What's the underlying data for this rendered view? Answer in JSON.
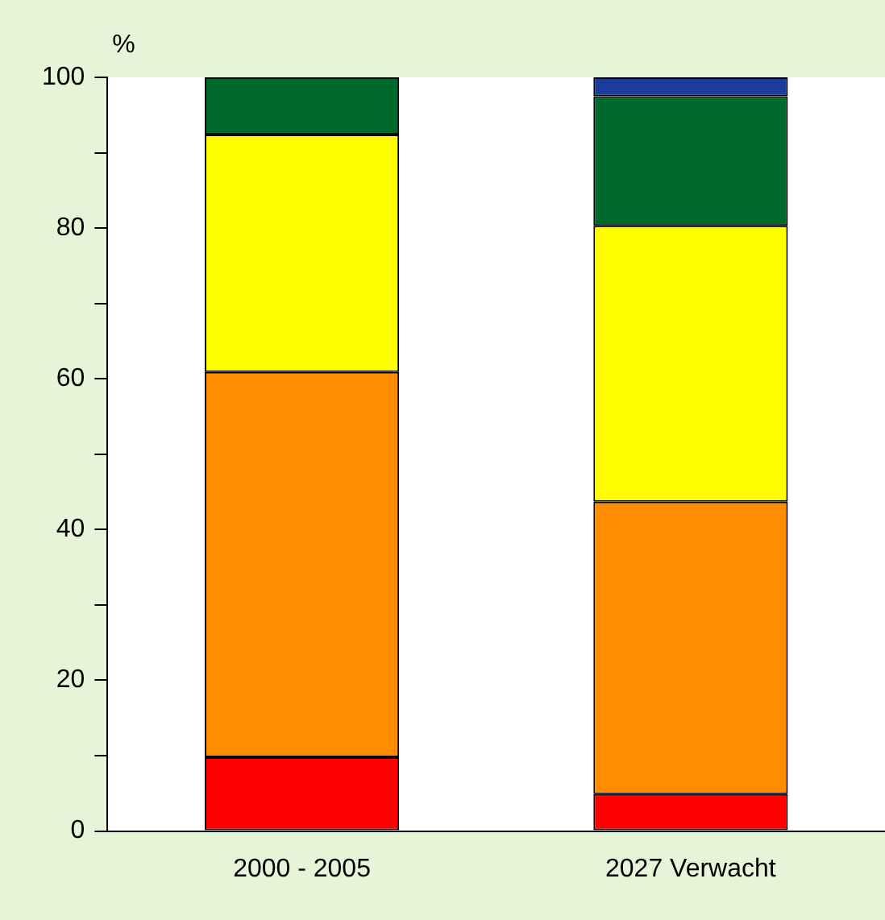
{
  "chart_data": {
    "type": "bar",
    "stacked": true,
    "ylabel": "%",
    "categories": [
      "2000 - 2005",
      "2027 Verwacht"
    ],
    "series": [
      {
        "color": "#ff0000",
        "values": [
          9.8,
          4.9
        ]
      },
      {
        "color": "#ff8c00",
        "values": [
          51.1,
          38.8
        ]
      },
      {
        "color": "#ffff00",
        "values": [
          31.5,
          36.6
        ]
      },
      {
        "color": "#006a2e",
        "values": [
          7.6,
          17.2
        ]
      },
      {
        "color": "#1a3c9c",
        "values": [
          null,
          2.5
        ]
      }
    ],
    "ylim": [
      0,
      100
    ],
    "yticks": [
      0,
      {
        "value": 10,
        "label": null
      },
      20,
      {
        "value": 30,
        "label": null
      },
      40,
      {
        "value": 50,
        "label": null
      },
      60,
      {
        "value": 70,
        "label": null
      },
      80,
      {
        "value": 90,
        "label": null
      },
      100
    ],
    "grid": false,
    "legend": false
  }
}
